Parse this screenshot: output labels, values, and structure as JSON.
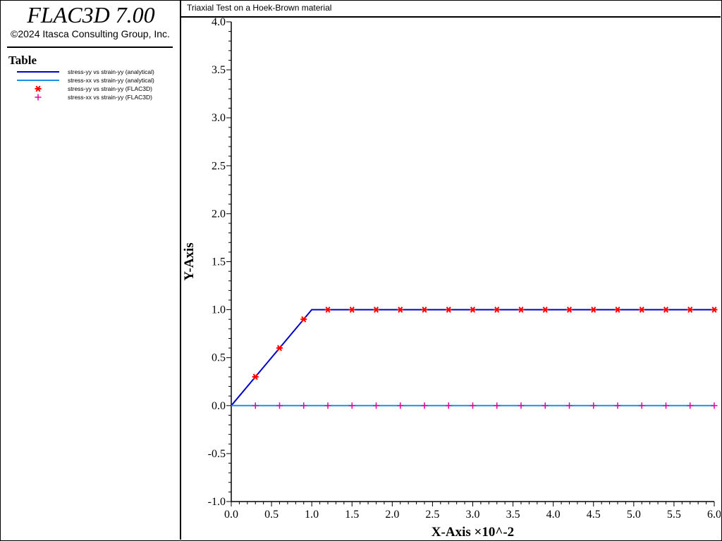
{
  "app": {
    "title": "FLAC3D 7.00",
    "copyright": "©2024 Itasca Consulting Group, Inc."
  },
  "legend": {
    "heading": "Table",
    "items": [
      {
        "label": "stress-yy vs strain-yy (analytical)",
        "style": "line",
        "color": "#0000cc"
      },
      {
        "label": "stress-xx vs strain-yy (analytical)",
        "style": "line",
        "color": "#1a8fe6"
      },
      {
        "label": "stress-yy vs strain-yy (FLAC3D)",
        "style": "asterisk",
        "color": "#ff0000"
      },
      {
        "label": "stress-xx vs strain-yy (FLAC3D)",
        "style": "plus",
        "color": "#e6009e"
      }
    ]
  },
  "plot": {
    "title": "Triaxial Test on a Hoek-Brown material"
  },
  "chart_data": {
    "type": "line",
    "title": "Triaxial Test on a Hoek-Brown material",
    "xlabel": "X-Axis ×10^-2",
    "ylabel": "Y-Axis",
    "xlim": [
      0.0,
      6.0
    ],
    "ylim": [
      -1.0,
      4.0
    ],
    "x_ticks": [
      "0.0",
      "0.5",
      "1.0",
      "1.5",
      "2.0",
      "2.5",
      "3.0",
      "3.5",
      "4.0",
      "4.5",
      "5.0",
      "5.5",
      "6.0"
    ],
    "y_ticks": [
      "4.0",
      "3.5",
      "3.0",
      "2.5",
      "2.0",
      "1.5",
      "1.0",
      "0.5",
      "0.0",
      "-0.5",
      "-1.0"
    ],
    "grid": false,
    "series": [
      {
        "name": "stress-yy vs strain-yy (analytical)",
        "style": "line",
        "color": "#0000cc",
        "x": [
          0.0,
          1.0,
          6.0
        ],
        "y": [
          0.0,
          1.0,
          1.0
        ]
      },
      {
        "name": "stress-xx vs strain-yy (analytical)",
        "style": "line",
        "color": "#1a8fe6",
        "x": [
          0.0,
          6.0
        ],
        "y": [
          0.0,
          0.0
        ]
      },
      {
        "name": "stress-yy vs strain-yy (FLAC3D)",
        "style": "asterisk",
        "color": "#ff0000",
        "x": [
          0.3,
          0.6,
          0.9,
          1.2,
          1.5,
          1.8,
          2.1,
          2.4,
          2.7,
          3.0,
          3.3,
          3.6,
          3.9,
          4.2,
          4.5,
          4.8,
          5.1,
          5.4,
          5.7,
          6.0
        ],
        "y": [
          0.3,
          0.6,
          0.9,
          1.0,
          1.0,
          1.0,
          1.0,
          1.0,
          1.0,
          1.0,
          1.0,
          1.0,
          1.0,
          1.0,
          1.0,
          1.0,
          1.0,
          1.0,
          1.0,
          1.0
        ]
      },
      {
        "name": "stress-xx vs strain-yy (FLAC3D)",
        "style": "plus",
        "color": "#e6009e",
        "x": [
          0.3,
          0.6,
          0.9,
          1.2,
          1.5,
          1.8,
          2.1,
          2.4,
          2.7,
          3.0,
          3.3,
          3.6,
          3.9,
          4.2,
          4.5,
          4.8,
          5.1,
          5.4,
          5.7,
          6.0
        ],
        "y": [
          0.0,
          0.0,
          0.0,
          0.0,
          0.0,
          0.0,
          0.0,
          0.0,
          0.0,
          0.0,
          0.0,
          0.0,
          0.0,
          0.0,
          0.0,
          0.0,
          0.0,
          0.0,
          0.0,
          0.0
        ]
      }
    ]
  }
}
